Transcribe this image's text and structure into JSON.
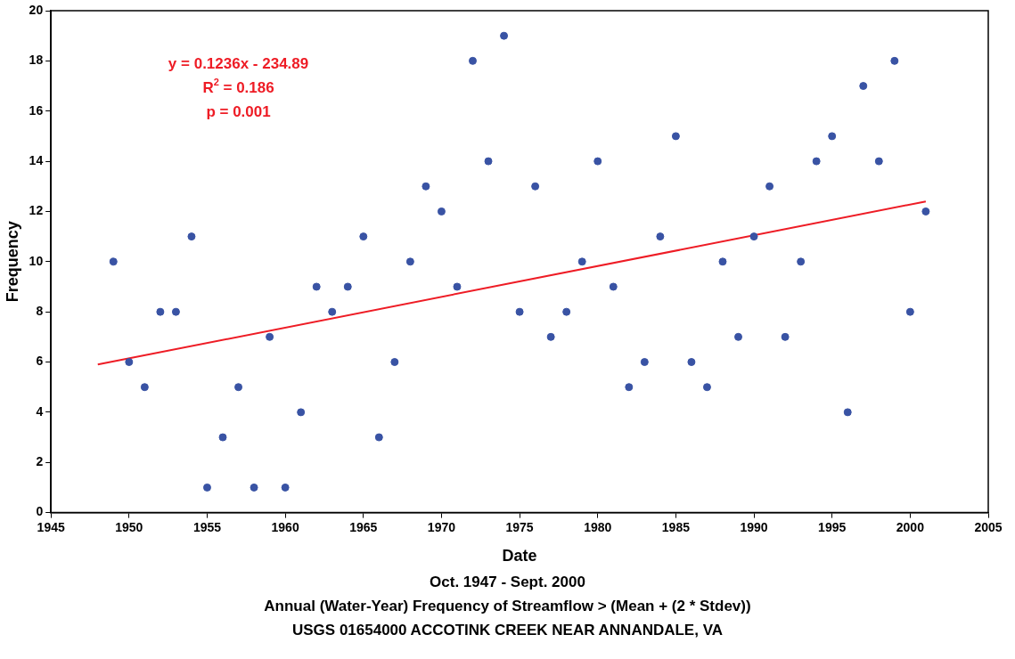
{
  "chart_data": {
    "type": "scatter",
    "xlabel": "Date",
    "ylabel": "Frequency",
    "x": [
      1949,
      1950,
      1951,
      1952,
      1953,
      1954,
      1955,
      1956,
      1957,
      1958,
      1959,
      1960,
      1961,
      1962,
      1963,
      1964,
      1965,
      1966,
      1967,
      1968,
      1969,
      1970,
      1971,
      1972,
      1973,
      1974,
      1975,
      1976,
      1977,
      1978,
      1979,
      1980,
      1981,
      1982,
      1983,
      1984,
      1985,
      1986,
      1987,
      1988,
      1989,
      1990,
      1991,
      1992,
      1993,
      1994,
      1995,
      1996,
      1997,
      1998,
      1999,
      2000,
      2001
    ],
    "series": [
      {
        "type": "scatter",
        "color": "#3953a4",
        "marker": "circle",
        "values": [
          10,
          6,
          5,
          8,
          8,
          11,
          1,
          3,
          5,
          1,
          7,
          1,
          4,
          9,
          8,
          9,
          11,
          3,
          6,
          10,
          13,
          12,
          9,
          18,
          14,
          19,
          8,
          13,
          7,
          8,
          10,
          14,
          9,
          5,
          6,
          11,
          15,
          6,
          5,
          10,
          7,
          11,
          13,
          7,
          10,
          14,
          15,
          4,
          17,
          14,
          18,
          8,
          12
        ]
      },
      {
        "type": "line",
        "color": "#ee1c25",
        "marker": "none",
        "line_style": "solid",
        "x": [
          1948,
          2001
        ],
        "values": [
          5.9,
          12.4
        ]
      }
    ],
    "xlim": [
      1945,
      2005
    ],
    "xticks": [
      1945,
      1950,
      1955,
      1960,
      1965,
      1970,
      1975,
      1980,
      1985,
      1990,
      1995,
      2000,
      2005
    ],
    "ylim": [
      0,
      20
    ],
    "yticks": [
      0,
      2,
      4,
      6,
      8,
      10,
      12,
      14,
      16,
      18,
      20
    ],
    "grid": false,
    "legend": false,
    "annotations": [
      "y = 0.1236x - 234.89",
      "R$^{2}$ = 0.186",
      "p = 0.001",
      "Oct. 1947 - Sept. 2000",
      "Annual (Water-Year) Frequency of Streamflow > (Mean + (2 * Stdev))",
      "USGS 01654000 ACCOTINK CREEK NEAR ANNANDALE, VA"
    ]
  }
}
